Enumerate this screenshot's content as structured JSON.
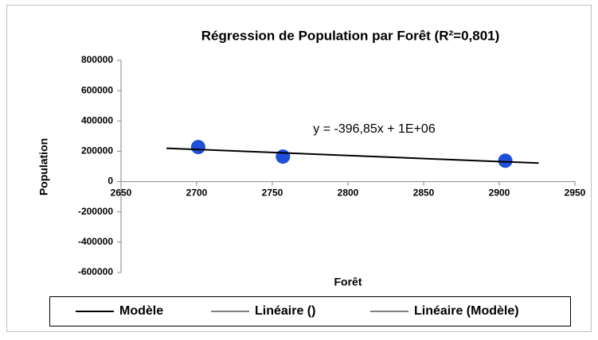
{
  "chart_data": {
    "type": "scatter",
    "title": "Régression de Population par Forêt (R²=0,801)",
    "xlabel": "Forêt",
    "ylabel": "Population",
    "annotation": "y = -396,85x + 1E+06",
    "series": [
      {
        "color": "#1f4fd8",
        "x": [
          2701,
          2757,
          2904
        ],
        "values": [
          228000,
          165000,
          138000
        ]
      },
      {
        "name": "Modèle",
        "color": "#000000",
        "x": [
          2680,
          2926
        ],
        "values": [
          220000,
          122000
        ]
      }
    ],
    "trendlines": [
      {
        "name": "Linéaire ()",
        "color": "#000000"
      },
      {
        "name": "Linéaire (Modèle)",
        "color": "#000000"
      }
    ],
    "xlim": [
      2650,
      2950
    ],
    "xticks": [
      2650,
      2700,
      2750,
      2800,
      2850,
      2900,
      2950
    ],
    "ylim": [
      -600000,
      800000
    ],
    "yticks": [
      -600000,
      -400000,
      -200000,
      0,
      200000,
      400000,
      600000,
      800000
    ],
    "grid": false,
    "legend": "bottom"
  }
}
